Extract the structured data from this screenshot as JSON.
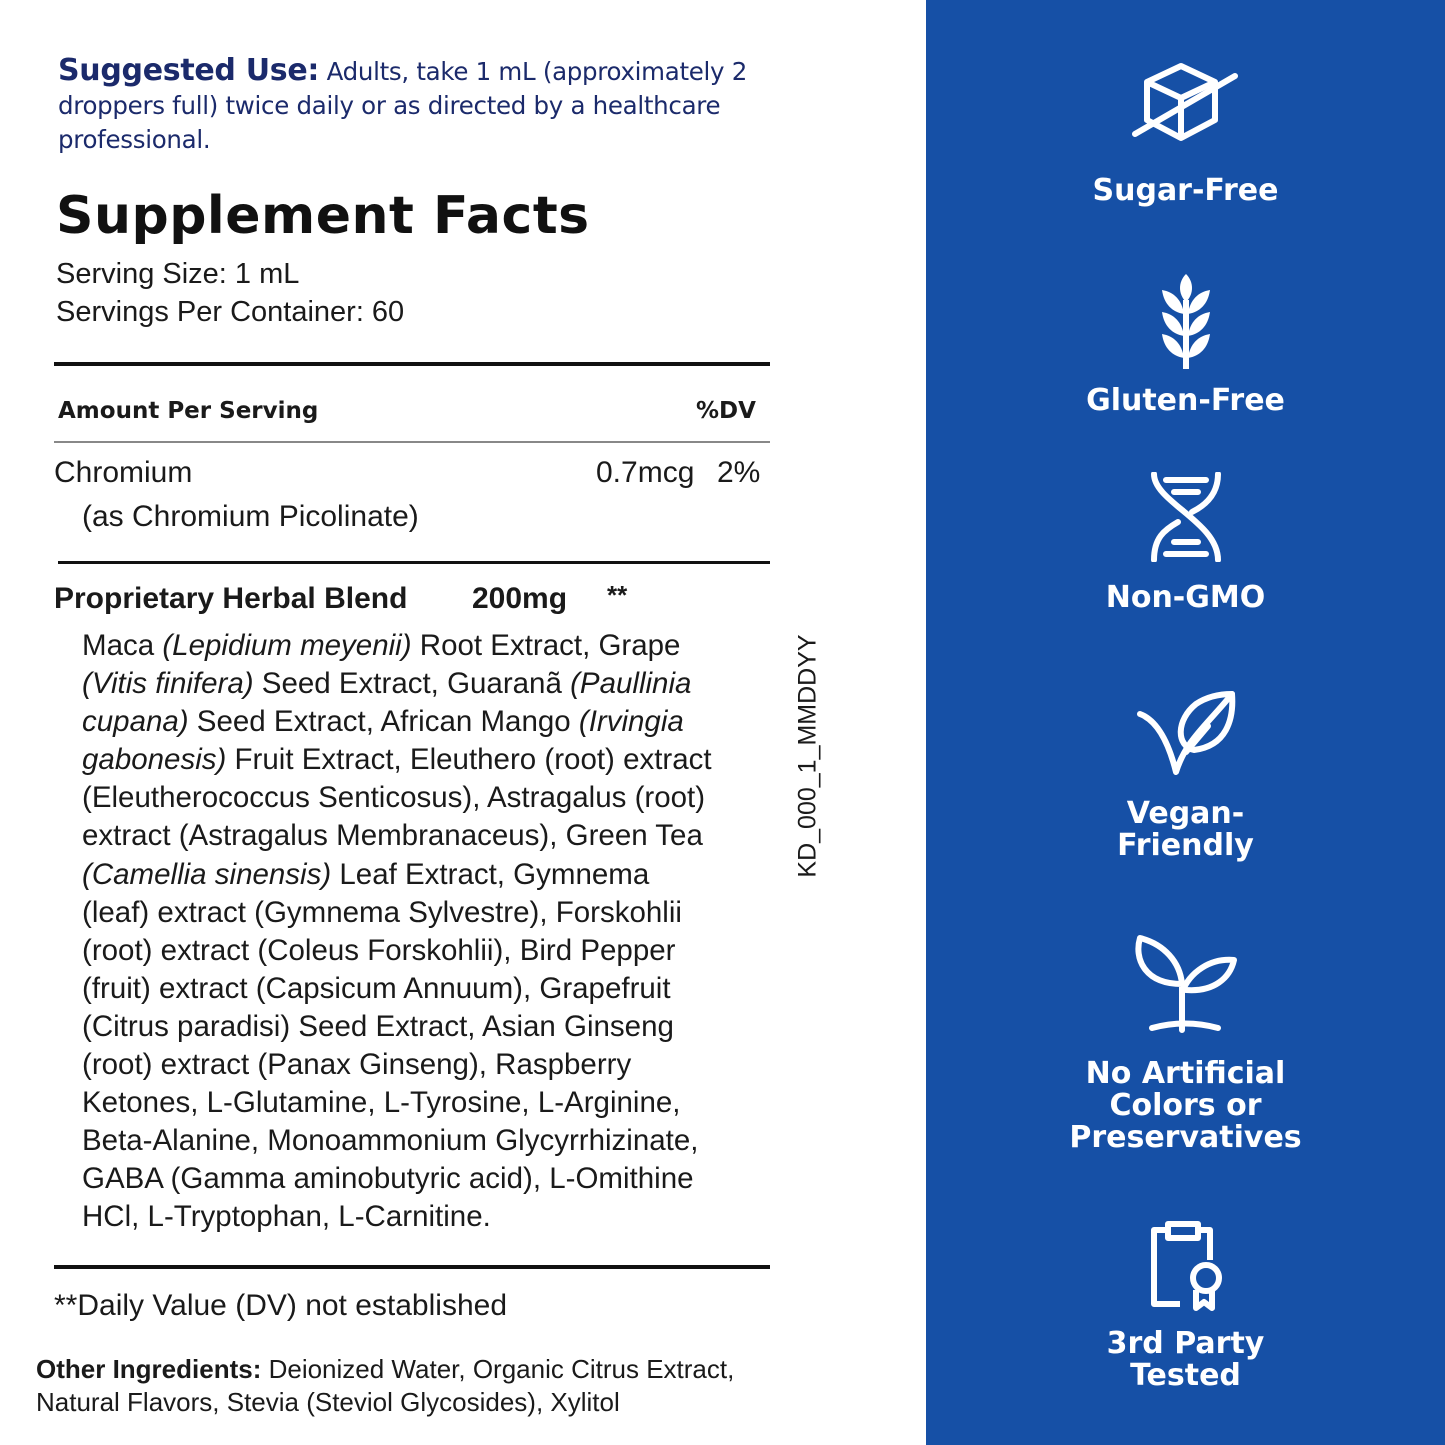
{
  "suggested_use": {
    "label": "Suggested Use:",
    "text": " Adults, take 1 mL (approximately 2 droppers full)  twice daily or as directed by a healthcare professional."
  },
  "facts": {
    "title": "Supplement Facts",
    "serving_size": "Serving Size: 1 mL",
    "servings_per_container": "Servings Per Container: 60",
    "amount_header": "Amount Per Serving",
    "dv_header": "%DV",
    "chromium": {
      "name": "Chromium",
      "source": "(as Chromium Picolinate)",
      "amount": "0.7mcg",
      "dv": "2%"
    },
    "blend": {
      "name": "Proprietary Herbal Blend",
      "amount": "200mg",
      "dv": "**",
      "lines": [
        [
          {
            "t": "Maca "
          },
          {
            "t": "(Lepidium meyenii)",
            "i": true
          },
          {
            "t": " Root Extract, Grape"
          }
        ],
        [
          {
            "t": "(Vitis finifera)",
            "i": true
          },
          {
            "t": " Seed Extract, Guaranã "
          },
          {
            "t": "(Paullinia",
            "i": true
          }
        ],
        [
          {
            "t": "cupana)",
            "i": true
          },
          {
            "t": " Seed Extract, African Mango "
          },
          {
            "t": "(Irvingia",
            "i": true
          }
        ],
        [
          {
            "t": "gabonesis)",
            "i": true
          },
          {
            "t": " Fruit Extract, Eleuthero (root) extract"
          }
        ],
        [
          {
            "t": "(Eleutherococcus Senticosus), Astragalus (root)"
          }
        ],
        [
          {
            "t": "extract (Astragalus Membranaceus), Green Tea"
          }
        ],
        [
          {
            "t": "(Camellia sinensis)",
            "i": true
          },
          {
            "t": " Leaf Extract, Gymnema"
          }
        ],
        [
          {
            "t": "(leaf) extract (Gymnema Sylvestre), Forskohlii"
          }
        ],
        [
          {
            "t": "(root) extract (Coleus Forskohlii), Bird Pepper"
          }
        ],
        [
          {
            "t": "(fruit) extract (Capsicum Annuum), Grapefruit"
          }
        ],
        [
          {
            "t": "(Citrus paradisi) Seed Extract, Asian Ginseng"
          }
        ],
        [
          {
            "t": "(root) extract (Panax Ginseng), Raspberry"
          }
        ],
        [
          {
            "t": "Ketones, L-Glutamine, L-Tyrosine, L-Arginine,"
          }
        ],
        [
          {
            "t": "Beta-Alanine, Monoammonium Glycyrrhizinate,"
          }
        ],
        [
          {
            "t": "GABA (Gamma aminobutyric acid), L-Omithine"
          }
        ],
        [
          {
            "t": "HCl, L-Tryptophan, L-Carnitine."
          }
        ]
      ]
    },
    "footnote": "**Daily Value (DV) not established"
  },
  "other": {
    "label": "Other Ingredients:",
    "text": " Deionized Water, Organic Citrus Extract, Natural Flavors, Stevia (Steviol Glycosides), Xylitol"
  },
  "lot_code": "KD_000_1_MMDDYY",
  "panel": {
    "color": "#1650a6",
    "badges": [
      {
        "icon": "sugar-cube-crossed-icon",
        "label": "Sugar-Free"
      },
      {
        "icon": "wheat-icon",
        "label": "Gluten-Free"
      },
      {
        "icon": "dna-icon",
        "label": "Non-GMO"
      },
      {
        "icon": "leaf-check-icon",
        "label": "Vegan-\nFriendly"
      },
      {
        "icon": "sprout-icon",
        "label": "No Artificial\nColors or\nPreservatives"
      },
      {
        "icon": "clipboard-award-icon",
        "label": "3rd Party\nTested"
      }
    ]
  }
}
